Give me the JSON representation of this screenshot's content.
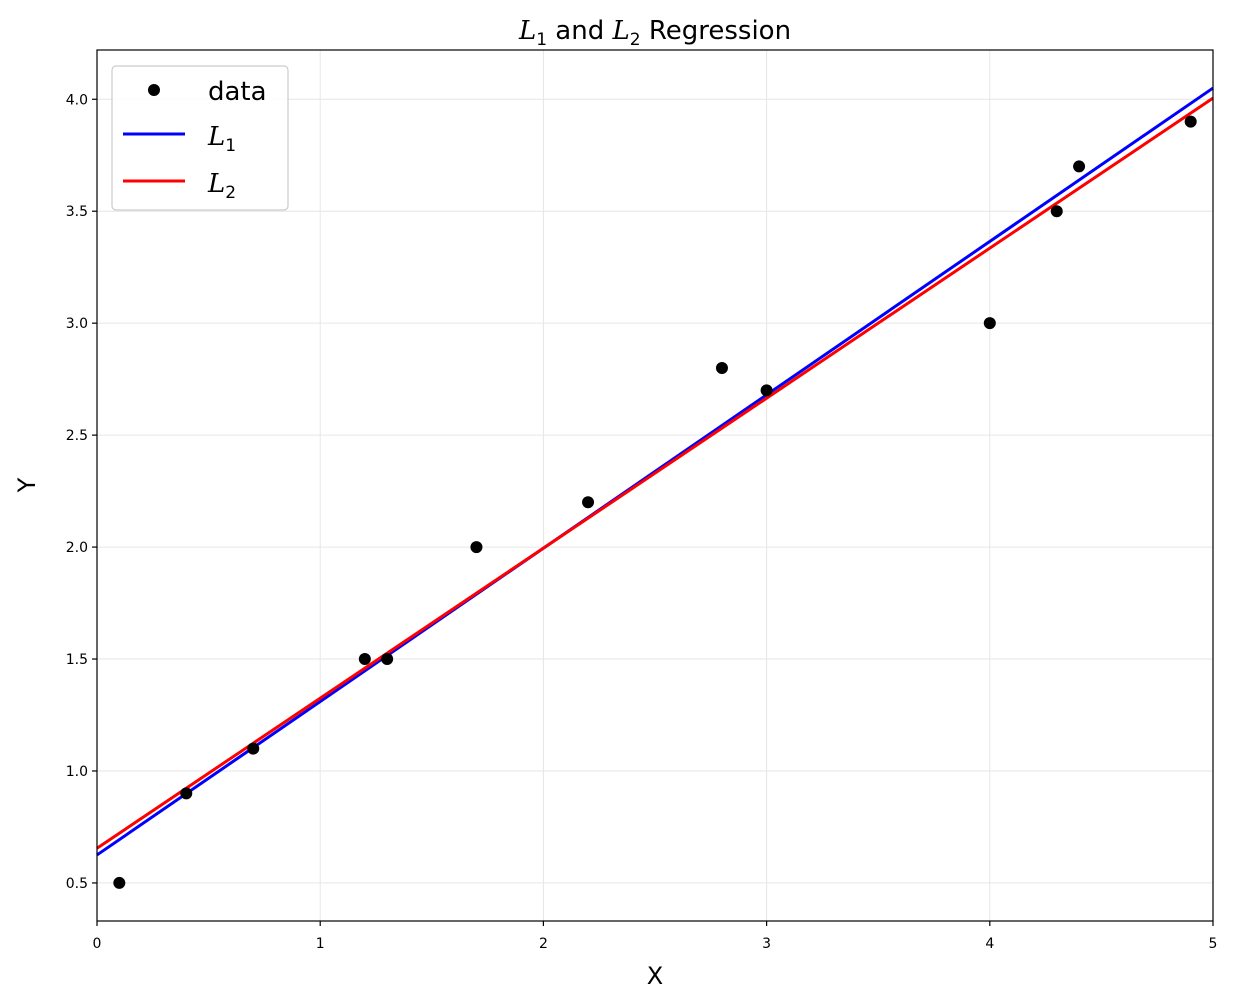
{
  "chart_data": {
    "type": "scatter",
    "title": {
      "prefix_sym": "L",
      "prefix_sub": "1",
      "middle": " and ",
      "second_sym": "L",
      "second_sub": "2",
      "suffix": " Regression"
    },
    "xlabel": "X",
    "ylabel": "Y",
    "xlim": [
      0,
      5
    ],
    "ylim": [
      0.33,
      4.22
    ],
    "xticks": [
      0,
      1,
      2,
      3,
      4,
      5
    ],
    "xtick_labels": [
      "0",
      "1",
      "2",
      "3",
      "4",
      "5"
    ],
    "yticks": [
      0.5,
      1.0,
      1.5,
      2.0,
      2.5,
      3.0,
      3.5,
      4.0
    ],
    "ytick_labels": [
      "0.5",
      "1.0",
      "1.5",
      "2.0",
      "2.5",
      "3.0",
      "3.5",
      "4.0"
    ],
    "grid": true,
    "legend_position": "upper left",
    "points": {
      "name": "data",
      "color": "#000000",
      "x": [
        0.1,
        0.4,
        0.7,
        1.2,
        1.3,
        1.7,
        2.2,
        2.8,
        3.0,
        4.0,
        4.3,
        4.4,
        4.9
      ],
      "y": [
        0.5,
        0.9,
        1.1,
        1.5,
        1.5,
        2.0,
        2.2,
        2.8,
        2.7,
        3.0,
        3.5,
        3.7,
        3.9
      ]
    },
    "lines": [
      {
        "sym": "L",
        "sub": "1",
        "color": "#0000ff",
        "intercept": 0.625,
        "slope": 0.685
      },
      {
        "sym": "L",
        "sub": "2",
        "color": "#ff0000",
        "intercept": 0.655,
        "slope": 0.67
      }
    ]
  }
}
